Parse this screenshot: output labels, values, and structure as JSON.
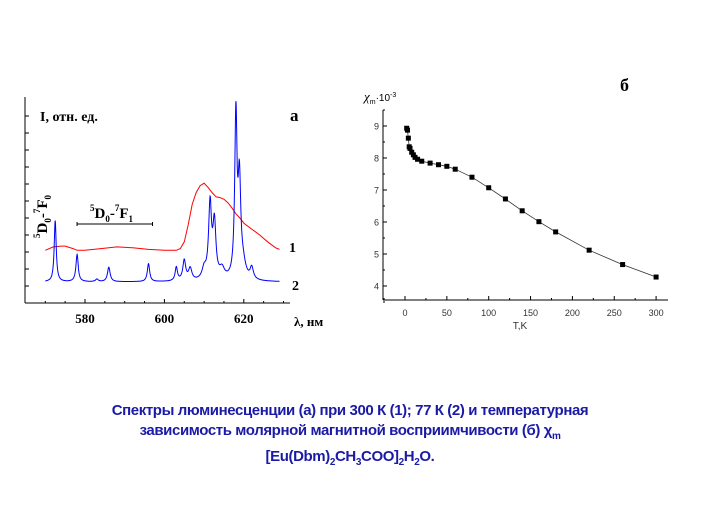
{
  "chart_data": [
    {
      "type": "line",
      "panel_label": "а",
      "ylabel": "I, отн. ед.",
      "xlabel": "λ, нм",
      "xticks": [
        580,
        600,
        620
      ],
      "xlim": [
        567,
        631
      ],
      "ylim": [
        -1,
        11
      ],
      "annotations": {
        "transition_0": {
          "sup1": "5",
          "D": "D",
          "sub1": "0",
          "dash": "-",
          "sup2": "7",
          "F": "F",
          "sub2": "0"
        },
        "transition_1": {
          "sup1": "5",
          "D": "D",
          "sub1": "0",
          "dash": "-",
          "sup2": "7",
          "F": "F",
          "sub2": "1",
          "range": [
            578,
            597
          ]
        }
      },
      "series": [
        {
          "name": "1",
          "color": "#ff0000",
          "x": [
            570,
            572,
            574,
            575,
            577,
            578,
            580,
            584,
            588,
            592,
            596,
            600,
            603,
            604,
            605,
            606,
            607,
            608,
            609,
            610,
            611,
            612,
            613,
            614,
            615,
            616,
            617,
            618,
            619,
            620,
            622,
            624,
            626,
            628,
            629
          ],
          "y": [
            2.1,
            2.3,
            2.35,
            2.35,
            2.2,
            2.1,
            2.1,
            2.2,
            2.3,
            2.25,
            2.15,
            2.1,
            2.1,
            2.2,
            2.6,
            3.6,
            4.8,
            5.5,
            5.9,
            6.05,
            5.8,
            5.5,
            5.25,
            5.2,
            5.1,
            4.9,
            4.6,
            4.25,
            4.0,
            3.7,
            3.35,
            3.0,
            2.6,
            2.25,
            2.15
          ]
        },
        {
          "name": "2",
          "color": "#0000ff",
          "baseline": 0.24,
          "xrange": [
            570,
            629
          ],
          "peaks": [
            {
              "x": 572.5,
              "h": 3.6,
              "w": 0.3
            },
            {
              "x": 578,
              "h": 1.6,
              "w": 0.35
            },
            {
              "x": 583,
              "h": 0.15,
              "w": 0.4
            },
            {
              "x": 586,
              "h": 0.85,
              "w": 0.4
            },
            {
              "x": 596,
              "h": 1.05,
              "w": 0.35
            },
            {
              "x": 603,
              "h": 0.8,
              "w": 0.35
            },
            {
              "x": 605,
              "h": 1.2,
              "w": 0.45
            },
            {
              "x": 606.5,
              "h": 0.7,
              "w": 0.5
            },
            {
              "x": 610,
              "h": 0.6,
              "w": 0.6
            },
            {
              "x": 611.5,
              "h": 4.4,
              "w": 0.45
            },
            {
              "x": 612.6,
              "h": 3.2,
              "w": 0.45
            },
            {
              "x": 614.5,
              "h": 0.6,
              "w": 0.8
            },
            {
              "x": 618,
              "h": 9.5,
              "w": 0.35
            },
            {
              "x": 618.9,
              "h": 5.5,
              "w": 0.4
            },
            {
              "x": 619.8,
              "h": 0.8,
              "w": 0.8
            },
            {
              "x": 622,
              "h": 0.7,
              "w": 0.5
            }
          ]
        }
      ]
    },
    {
      "type": "scatter",
      "panel_label": "б",
      "ylabel": {
        "chi": "χ",
        "sub": "m",
        "mult": "·10",
        "exp": "-3"
      },
      "xlabel": "T,K",
      "xticks": [
        0,
        50,
        100,
        150,
        200,
        250,
        300
      ],
      "yticks": [
        4,
        5,
        6,
        7,
        8,
        9
      ],
      "xlim": [
        -25,
        315
      ],
      "ylim": [
        3.55,
        9.5
      ],
      "x": [
        2,
        3,
        4,
        5,
        6,
        8,
        10,
        12,
        15,
        20,
        30,
        40,
        50,
        60,
        80,
        100,
        120,
        140,
        160,
        180,
        220,
        260,
        300
      ],
      "y": [
        8.93,
        8.87,
        8.62,
        8.35,
        8.3,
        8.18,
        8.1,
        8.02,
        7.96,
        7.9,
        7.84,
        7.79,
        7.74,
        7.65,
        7.4,
        7.07,
        6.72,
        6.35,
        6.01,
        5.69,
        5.12,
        4.67,
        4.28
      ]
    }
  ],
  "caption": {
    "line1": "Спектры люминесценции  (а) при 300 К (1);  77 К (2) и температурная",
    "line2": "зависимость молярной магнитной восприимчивости (б) χ",
    "line2_sub": "m",
    "line3": [
      {
        "t": "[Eu(Dbm)"
      },
      {
        "s": "2"
      },
      {
        "t": "CH"
      },
      {
        "s": "3"
      },
      {
        "t": "COO]"
      },
      {
        "s": "2"
      },
      {
        "t": "H"
      },
      {
        "s": "2"
      },
      {
        "t": "O."
      }
    ]
  }
}
